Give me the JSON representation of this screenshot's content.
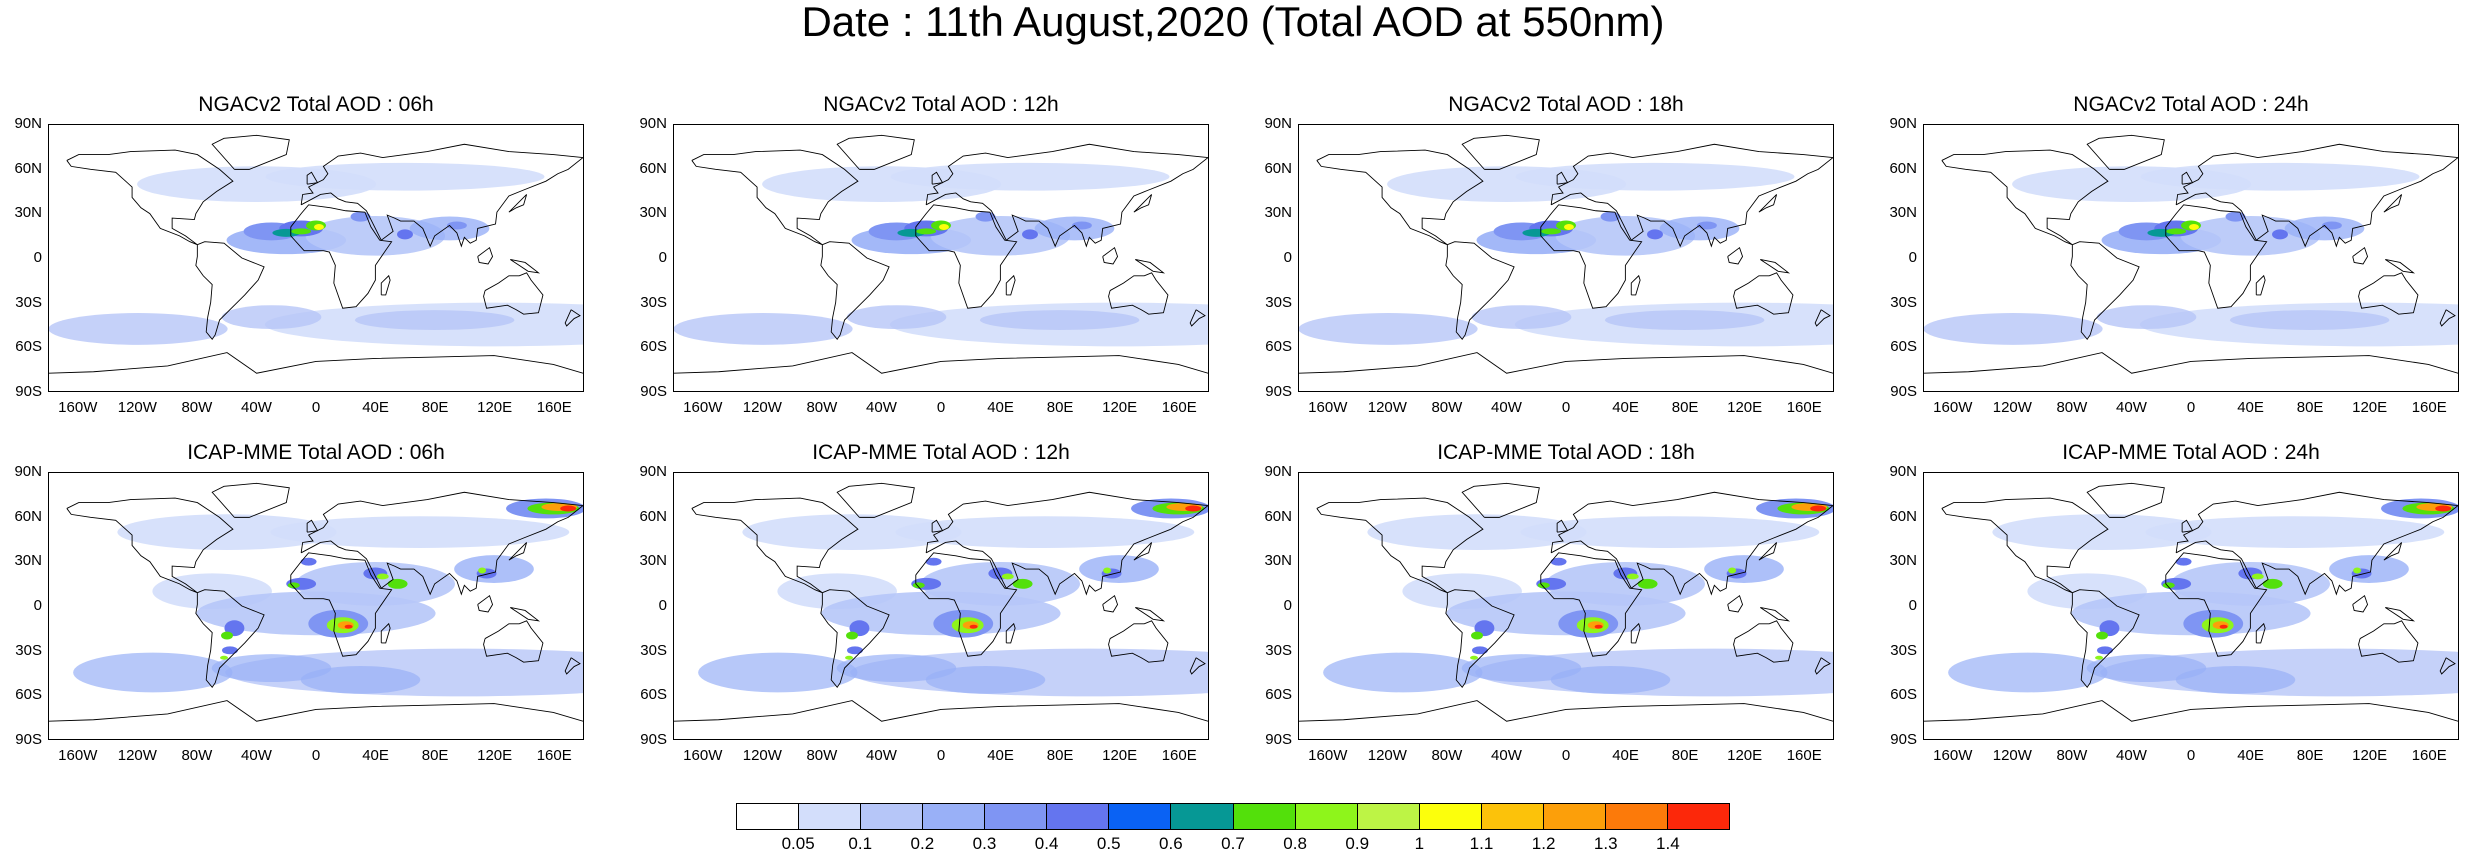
{
  "title": "Date : 11th August,2020 (Total AOD at 550nm)",
  "lat_labels": [
    "90N",
    "60N",
    "30N",
    "0",
    "30S",
    "60S",
    "90S"
  ],
  "lon_labels": [
    "160W",
    "120W",
    "80W",
    "40W",
    "0",
    "40E",
    "80E",
    "120E",
    "160E"
  ],
  "panels": [
    {
      "title": "NGACv2 Total AOD : 06h",
      "model": "NGACv2",
      "hour": "06h"
    },
    {
      "title": "NGACv2 Total AOD : 12h",
      "model": "NGACv2",
      "hour": "12h"
    },
    {
      "title": "NGACv2 Total AOD : 18h",
      "model": "NGACv2",
      "hour": "18h"
    },
    {
      "title": "NGACv2 Total AOD : 24h",
      "model": "NGACv2",
      "hour": "24h"
    },
    {
      "title": "ICAP-MME Total AOD : 06h",
      "model": "ICAP-MME",
      "hour": "06h"
    },
    {
      "title": "ICAP-MME Total AOD : 12h",
      "model": "ICAP-MME",
      "hour": "12h"
    },
    {
      "title": "ICAP-MME Total AOD : 18h",
      "model": "ICAP-MME",
      "hour": "18h"
    },
    {
      "title": "ICAP-MME Total AOD : 24h",
      "model": "ICAP-MME",
      "hour": "24h"
    }
  ],
  "colorbar": {
    "labels": [
      "0.05",
      "0.1",
      "0.2",
      "0.3",
      "0.4",
      "0.5",
      "0.6",
      "0.7",
      "0.8",
      "0.9",
      "1",
      "1.1",
      "1.2",
      "1.3",
      "1.4"
    ],
    "colors": [
      "#ffffff",
      "#d3defb",
      "#b6c6f8",
      "#99b0f7",
      "#7f95f3",
      "#6475ef",
      "#0a62f4",
      "#069895",
      "#53e00b",
      "#8ef51b",
      "#bdf445",
      "#fcff0c",
      "#fcc20a",
      "#fc9f0a",
      "#fc7a0a",
      "#fc280a"
    ]
  }
}
